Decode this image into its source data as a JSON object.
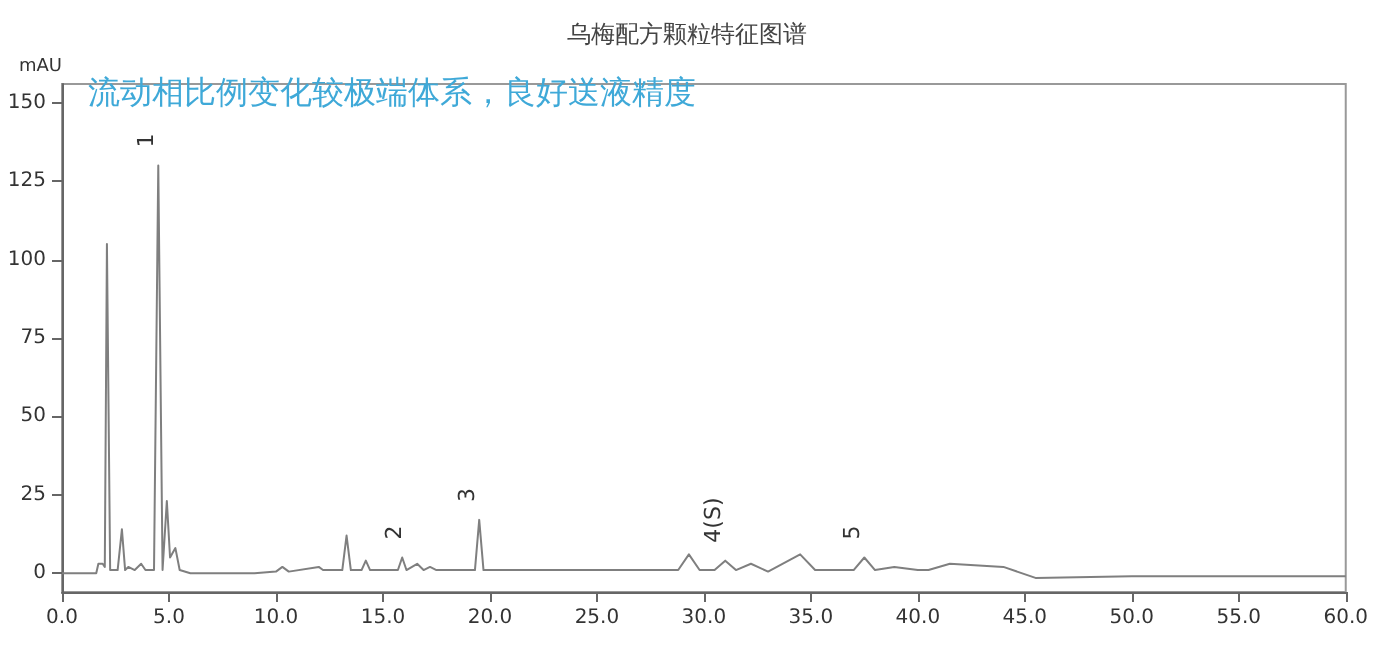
{
  "chart_data": {
    "type": "line",
    "title": "乌梅配方颗粒特征图谱",
    "ylabel": "mAU",
    "color": "#7f7f7f",
    "x": [
      0,
      1.6,
      1.7,
      1.9,
      2.0,
      2.1,
      2.25,
      2.6,
      2.8,
      2.95,
      3.1,
      3.4,
      3.7,
      3.9,
      4.3,
      4.5,
      4.7,
      4.9,
      5.05,
      5.3,
      5.5,
      6,
      7,
      8,
      9,
      10,
      10.3,
      10.6,
      12,
      12.2,
      13.1,
      13.3,
      13.5,
      14,
      14.2,
      14.4,
      15.7,
      15.9,
      16.1,
      16.6,
      16.9,
      17.2,
      17.5,
      19.3,
      19.5,
      19.7,
      22,
      24,
      25,
      28.8,
      29.3,
      29.8,
      30.5,
      31.0,
      31.5,
      32.2,
      33,
      34.5,
      35.2,
      37,
      37.5,
      38,
      38.9,
      40,
      40.5,
      41.5,
      44,
      45.5,
      50,
      60
    ],
    "values": [
      0,
      0,
      3,
      3,
      2,
      105,
      1,
      1,
      14,
      1,
      2,
      1,
      3,
      1,
      1,
      130,
      1,
      23,
      5,
      8,
      1,
      0,
      0,
      0,
      0,
      0.5,
      2,
      0.5,
      2,
      1,
      1,
      12,
      1,
      1,
      4,
      1,
      1,
      5,
      1,
      3,
      1,
      2,
      1,
      1,
      17,
      1,
      1,
      1,
      1,
      1,
      6,
      1,
      1,
      4,
      1,
      3,
      0.5,
      6,
      1,
      1,
      5,
      1,
      2,
      1,
      1,
      3,
      2,
      -1.5,
      -1,
      -1
    ],
    "xlim": [
      0,
      60
    ],
    "xticks": [
      {
        "value": 0,
        "label": "0.0"
      },
      {
        "value": 5,
        "label": "5.0"
      },
      {
        "value": 10,
        "label": "10.0"
      },
      {
        "value": 15,
        "label": "15.0"
      },
      {
        "value": 20,
        "label": "20.0"
      },
      {
        "value": 25,
        "label": "25.0"
      },
      {
        "value": 30,
        "label": "30.0"
      },
      {
        "value": 35,
        "label": "35.0"
      },
      {
        "value": 40,
        "label": "40.0"
      },
      {
        "value": 45,
        "label": "45.0"
      },
      {
        "value": 50,
        "label": "50.0"
      },
      {
        "value": 55,
        "label": "55.0"
      },
      {
        "value": 60,
        "label": "60.0"
      }
    ],
    "ylim": [
      -6,
      156
    ],
    "yticks": [
      0,
      25,
      50,
      75,
      100,
      125,
      150
    ],
    "grid": false,
    "marker": "none",
    "line_style": "solid",
    "annotations": [
      "流动相比例变化较极端体系，良好送液精度",
      {
        "text": "1",
        "x": 4.5,
        "y": 130
      },
      {
        "text": "2",
        "x": 16.1,
        "y": 5
      },
      {
        "text": "3",
        "x": 19.5,
        "y": 17
      },
      {
        "text": "4(S)",
        "x": 31.0,
        "y": 4
      },
      {
        "text": "5",
        "x": 37.5,
        "y": 5
      }
    ]
  }
}
